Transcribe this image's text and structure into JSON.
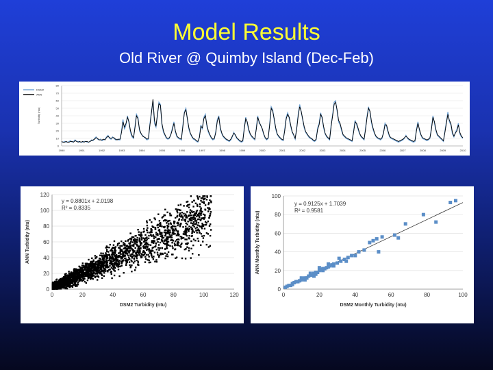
{
  "title": "Model Results",
  "subtitle": "Old River @ Quimby Island (Dec-Feb)",
  "colors": {
    "title": "#ffff33",
    "dsm2_series": "#6fa3d6",
    "ann_series": "#000000",
    "scatter1_points": "#000000",
    "scatter2_points": "#5b8ec7",
    "trendline": "#3a3a3a"
  },
  "chart_data": [
    {
      "type": "line",
      "title": "",
      "ylabel": "Turbidity (ntu)",
      "xlabel": "",
      "legend": [
        "DSM2",
        "ANN"
      ],
      "legend_position": "top-left",
      "ylim": [
        0,
        80
      ],
      "yticks": [
        "0",
        "10",
        "20",
        "30",
        "40",
        "50",
        "60",
        "70",
        "80"
      ],
      "xticks": [
        "1990",
        "1991",
        "1992",
        "1993",
        "1994",
        "1995",
        "1996",
        "1997",
        "1998",
        "1999",
        "2000",
        "2001",
        "2002",
        "2003",
        "2004",
        "2005",
        "2006",
        "2007",
        "2008",
        "2009",
        "2010"
      ],
      "series": [
        {
          "name": "DSM2",
          "values": [
            5,
            5,
            6,
            5,
            5,
            6,
            7,
            5,
            6,
            8,
            6,
            6,
            5,
            5,
            5,
            6,
            6,
            5,
            5,
            6,
            8,
            7,
            10,
            12,
            9,
            8,
            9,
            7,
            8,
            9,
            12,
            14,
            10,
            9,
            12,
            10,
            8,
            9,
            8,
            8,
            20,
            35,
            22,
            28,
            40,
            30,
            18,
            12,
            10,
            26,
            42,
            38,
            20,
            16,
            14,
            12,
            10,
            8,
            9,
            30,
            45,
            60,
            30,
            25,
            40,
            58,
            55,
            28,
            18,
            14,
            10,
            9,
            10,
            16,
            24,
            32,
            18,
            12,
            10,
            9,
            8,
            28,
            45,
            50,
            35,
            22,
            16,
            12,
            9,
            8,
            6,
            5,
            12,
            28,
            22,
            38,
            42,
            26,
            18,
            14,
            10,
            8,
            9,
            20,
            35,
            40,
            22,
            16,
            12,
            10,
            8,
            7,
            6,
            8,
            12,
            18,
            14,
            10,
            8,
            6,
            5,
            6,
            25,
            38,
            30,
            20,
            15,
            12,
            10,
            8,
            24,
            40,
            30,
            28,
            22,
            15,
            10,
            8,
            10,
            30,
            52,
            48,
            34,
            22,
            15,
            12,
            10,
            8,
            7,
            22,
            38,
            44,
            36,
            26,
            18,
            14,
            9,
            24,
            42,
            55,
            45,
            35,
            24,
            18,
            15,
            12,
            10,
            9,
            7,
            6,
            8,
            24,
            30,
            44,
            36,
            24,
            16,
            12,
            10,
            8,
            28,
            42,
            58,
            60,
            46,
            32,
            28,
            20,
            14,
            12,
            10,
            9,
            8,
            7,
            6,
            20,
            34,
            28,
            22,
            16,
            12,
            10,
            8,
            24,
            40,
            52,
            44,
            30,
            22,
            16,
            12,
            10,
            9,
            8,
            10,
            18,
            30,
            26,
            18,
            12,
            10,
            9,
            8,
            7,
            6,
            5,
            6,
            7,
            8,
            10,
            14,
            10,
            8,
            7,
            6,
            5,
            6,
            22,
            32,
            20,
            14,
            10,
            9,
            8,
            7,
            8,
            10,
            24,
            40,
            30,
            20,
            14,
            12,
            10,
            8,
            6,
            20,
            32,
            45,
            32,
            28,
            16,
            12,
            18,
            22,
            30,
            16,
            12,
            10
          ]
        },
        {
          "name": "ANN",
          "values": [
            6,
            5,
            5,
            6,
            5,
            5,
            6,
            6,
            5,
            7,
            6,
            5,
            6,
            5,
            6,
            5,
            6,
            6,
            5,
            6,
            7,
            8,
            9,
            11,
            10,
            8,
            8,
            8,
            9,
            8,
            11,
            13,
            11,
            10,
            11,
            11,
            9,
            8,
            9,
            9,
            18,
            32,
            25,
            30,
            38,
            32,
            20,
            14,
            11,
            24,
            40,
            36,
            22,
            17,
            13,
            12,
            11,
            9,
            10,
            28,
            44,
            62,
            34,
            26,
            42,
            56,
            54,
            30,
            20,
            15,
            11,
            10,
            11,
            15,
            22,
            30,
            20,
            13,
            11,
            10,
            9,
            26,
            44,
            48,
            36,
            24,
            17,
            13,
            10,
            9,
            7,
            6,
            11,
            26,
            24,
            36,
            40,
            28,
            20,
            15,
            11,
            9,
            10,
            18,
            33,
            38,
            24,
            17,
            13,
            11,
            9,
            8,
            7,
            9,
            13,
            17,
            15,
            11,
            9,
            7,
            6,
            7,
            23,
            36,
            32,
            22,
            16,
            13,
            11,
            9,
            22,
            38,
            32,
            27,
            23,
            16,
            11,
            9,
            11,
            28,
            50,
            46,
            36,
            24,
            16,
            13,
            11,
            9,
            8,
            20,
            36,
            42,
            38,
            28,
            19,
            15,
            10,
            22,
            40,
            52,
            46,
            36,
            26,
            19,
            16,
            13,
            11,
            10,
            8,
            7,
            9,
            22,
            28,
            42,
            38,
            26,
            17,
            13,
            11,
            9,
            26,
            40,
            55,
            58,
            48,
            34,
            30,
            22,
            15,
            13,
            11,
            10,
            9,
            8,
            7,
            18,
            32,
            30,
            24,
            17,
            13,
            11,
            9,
            22,
            38,
            50,
            46,
            32,
            24,
            17,
            13,
            11,
            10,
            9,
            11,
            17,
            28,
            28,
            20,
            13,
            11,
            10,
            9,
            8,
            7,
            6,
            7,
            8,
            9,
            11,
            13,
            11,
            9,
            8,
            7,
            6,
            7,
            20,
            30,
            22,
            15,
            11,
            10,
            9,
            8,
            9,
            11,
            22,
            38,
            32,
            22,
            15,
            13,
            11,
            9,
            7,
            18,
            30,
            42,
            34,
            30,
            18,
            13,
            17,
            20,
            28,
            18,
            13,
            11
          ]
        }
      ]
    },
    {
      "type": "scatter",
      "title": "",
      "xlabel": "DSM2 Turbidity (ntu)",
      "ylabel": "ANN Turbidity (ntu)",
      "xlim": [
        0,
        120
      ],
      "ylim": [
        0,
        120
      ],
      "xticks": [
        "0",
        "20",
        "40",
        "60",
        "80",
        "100",
        "120"
      ],
      "yticks": [
        "0",
        "20",
        "40",
        "60",
        "80",
        "100",
        "120"
      ],
      "annotation": [
        "y = 0.8801x + 2.0198",
        "R² = 0.8335"
      ],
      "trendline": {
        "slope": 0.8801,
        "intercept": 2.0198
      },
      "sampling": {
        "count": 2600,
        "x_max": 105,
        "noise_frac": 0.22
      }
    },
    {
      "type": "scatter",
      "title": "",
      "xlabel": "DSM2 Monthly Turbidity (ntu)",
      "ylabel": "ANN Monthly Turbidity (ntu)",
      "xlim": [
        0,
        100
      ],
      "ylim": [
        0,
        100
      ],
      "xticks": [
        "0",
        "20",
        "40",
        "60",
        "80",
        "100"
      ],
      "yticks": [
        "0",
        "20",
        "40",
        "60",
        "80",
        "100"
      ],
      "annotation": [
        "y = 0.9125x + 1.7039",
        "R² = 0.9581"
      ],
      "trendline": {
        "slope": 0.9125,
        "intercept": 1.7039
      },
      "points": [
        [
          1,
          2
        ],
        [
          2,
          3
        ],
        [
          3,
          4
        ],
        [
          4,
          4
        ],
        [
          5,
          6
        ],
        [
          5,
          5
        ],
        [
          6,
          7
        ],
        [
          7,
          8
        ],
        [
          8,
          8
        ],
        [
          9,
          9
        ],
        [
          10,
          10
        ],
        [
          11,
          11
        ],
        [
          12,
          12
        ],
        [
          13,
          12
        ],
        [
          14,
          14
        ],
        [
          15,
          15
        ],
        [
          16,
          15
        ],
        [
          17,
          17
        ],
        [
          18,
          18
        ],
        [
          19,
          18
        ],
        [
          20,
          20
        ],
        [
          21,
          21
        ],
        [
          22,
          22
        ],
        [
          23,
          22
        ],
        [
          24,
          23
        ],
        [
          25,
          24
        ],
        [
          26,
          25
        ],
        [
          27,
          26
        ],
        [
          28,
          27
        ],
        [
          30,
          28
        ],
        [
          32,
          30
        ],
        [
          34,
          32
        ],
        [
          36,
          34
        ],
        [
          38,
          36
        ],
        [
          40,
          36
        ],
        [
          42,
          40
        ],
        [
          45,
          42
        ],
        [
          48,
          50
        ],
        [
          50,
          52
        ],
        [
          52,
          54
        ],
        [
          53,
          40
        ],
        [
          55,
          56
        ],
        [
          62,
          58
        ],
        [
          64,
          55
        ],
        [
          68,
          70
        ],
        [
          78,
          80
        ],
        [
          85,
          72
        ],
        [
          93,
          93
        ],
        [
          96,
          95
        ],
        [
          10,
          12
        ],
        [
          12,
          10
        ],
        [
          15,
          17
        ],
        [
          18,
          16
        ],
        [
          22,
          20
        ],
        [
          25,
          27
        ],
        [
          28,
          25
        ],
        [
          31,
          33
        ],
        [
          35,
          30
        ],
        [
          20,
          23
        ],
        [
          17,
          14
        ]
      ]
    }
  ]
}
